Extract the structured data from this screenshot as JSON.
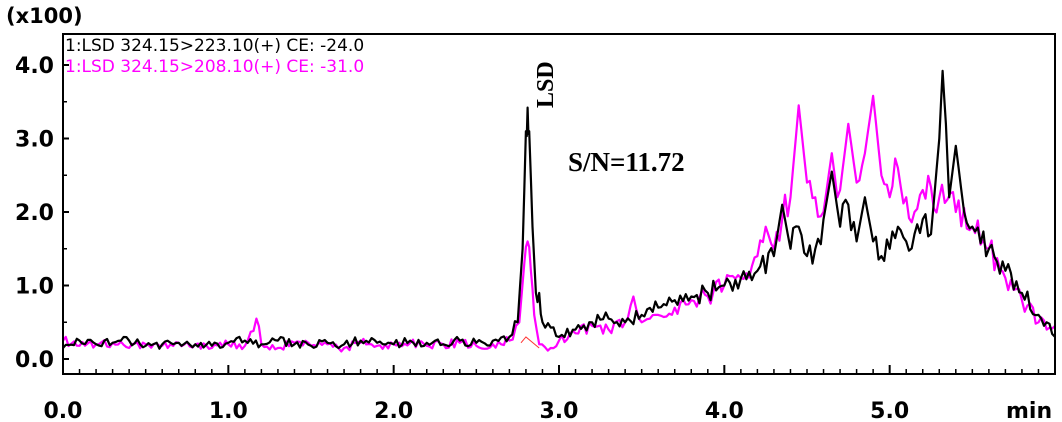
{
  "chart_data": {
    "type": "line",
    "y_multiplier_label": "(x100)",
    "x_unit_label": "min",
    "xlim": [
      0.0,
      6.0
    ],
    "ylim": [
      0.0,
      4.3
    ],
    "x_ticks": [
      "0.0",
      "1.0",
      "2.0",
      "3.0",
      "4.0",
      "5.0"
    ],
    "y_ticks": [
      "0.0",
      "1.0",
      "2.0",
      "3.0",
      "4.0"
    ],
    "grid": false,
    "legend": {
      "placement": "top-left",
      "entries": [
        {
          "label": "1:LSD 324.15>223.10(+) CE: -24.0",
          "color": "#000000"
        },
        {
          "label": "1:LSD 324.15>208.10(+) CE: -31.0",
          "color": "#ff00ff"
        }
      ]
    },
    "annotations": {
      "peak_label": "LSD",
      "signal_to_noise": "S/N=11.72"
    },
    "baseline_color": "#ff3333",
    "series": [
      {
        "name": "1:LSD 324.15>223.10(+) CE: -24.0",
        "color": "#000000",
        "points": [
          [
            0.0,
            0.15
          ],
          [
            0.1,
            0.25
          ],
          [
            0.2,
            0.2
          ],
          [
            0.3,
            0.22
          ],
          [
            0.4,
            0.25
          ],
          [
            0.5,
            0.18
          ],
          [
            0.6,
            0.2
          ],
          [
            0.7,
            0.22
          ],
          [
            0.8,
            0.2
          ],
          [
            0.9,
            0.18
          ],
          [
            1.0,
            0.22
          ],
          [
            1.1,
            0.25
          ],
          [
            1.2,
            0.2
          ],
          [
            1.3,
            0.25
          ],
          [
            1.4,
            0.2
          ],
          [
            1.5,
            0.18
          ],
          [
            1.6,
            0.22
          ],
          [
            1.7,
            0.2
          ],
          [
            1.8,
            0.25
          ],
          [
            1.9,
            0.22
          ],
          [
            2.0,
            0.2
          ],
          [
            2.1,
            0.25
          ],
          [
            2.2,
            0.22
          ],
          [
            2.3,
            0.2
          ],
          [
            2.4,
            0.25
          ],
          [
            2.5,
            0.22
          ],
          [
            2.6,
            0.25
          ],
          [
            2.7,
            0.3
          ],
          [
            2.75,
            0.5
          ],
          [
            2.78,
            1.5
          ],
          [
            2.8,
            3.1
          ],
          [
            2.81,
            3.42
          ],
          [
            2.82,
            3.1
          ],
          [
            2.84,
            1.8
          ],
          [
            2.86,
            0.9
          ],
          [
            2.88,
            0.9
          ],
          [
            2.9,
            0.5
          ],
          [
            3.0,
            0.3
          ],
          [
            3.1,
            0.4
          ],
          [
            3.2,
            0.5
          ],
          [
            3.3,
            0.55
          ],
          [
            3.4,
            0.5
          ],
          [
            3.5,
            0.6
          ],
          [
            3.6,
            0.7
          ],
          [
            3.7,
            0.8
          ],
          [
            3.8,
            0.85
          ],
          [
            3.9,
            0.9
          ],
          [
            4.0,
            1.0
          ],
          [
            4.1,
            1.1
          ],
          [
            4.2,
            1.2
          ],
          [
            4.3,
            1.4
          ],
          [
            4.35,
            2.1
          ],
          [
            4.4,
            1.5
          ],
          [
            4.45,
            1.8
          ],
          [
            4.5,
            1.4
          ],
          [
            4.55,
            1.5
          ],
          [
            4.6,
            1.9
          ],
          [
            4.65,
            2.55
          ],
          [
            4.7,
            1.8
          ],
          [
            4.75,
            2.1
          ],
          [
            4.8,
            1.6
          ],
          [
            4.85,
            2.2
          ],
          [
            4.9,
            1.6
          ],
          [
            4.95,
            1.4
          ],
          [
            5.0,
            1.5
          ],
          [
            5.05,
            1.8
          ],
          [
            5.1,
            1.6
          ],
          [
            5.15,
            1.7
          ],
          [
            5.2,
            1.9
          ],
          [
            5.25,
            1.7
          ],
          [
            5.3,
            3.0
          ],
          [
            5.32,
            3.92
          ],
          [
            5.34,
            3.2
          ],
          [
            5.36,
            2.2
          ],
          [
            5.4,
            2.9
          ],
          [
            5.45,
            2.0
          ],
          [
            5.5,
            1.8
          ],
          [
            5.6,
            1.5
          ],
          [
            5.7,
            1.2
          ],
          [
            5.8,
            0.9
          ],
          [
            5.9,
            0.6
          ],
          [
            5.95,
            0.5
          ],
          [
            6.0,
            0.3
          ]
        ]
      },
      {
        "name": "1:LSD 324.15>208.10(+) CE: -31.0",
        "color": "#ff00ff",
        "points": [
          [
            0.0,
            0.25
          ],
          [
            0.1,
            0.18
          ],
          [
            0.2,
            0.2
          ],
          [
            0.3,
            0.22
          ],
          [
            0.4,
            0.15
          ],
          [
            0.5,
            0.2
          ],
          [
            0.6,
            0.18
          ],
          [
            0.7,
            0.22
          ],
          [
            0.8,
            0.2
          ],
          [
            0.9,
            0.15
          ],
          [
            1.0,
            0.2
          ],
          [
            1.1,
            0.18
          ],
          [
            1.17,
            0.55
          ],
          [
            1.2,
            0.2
          ],
          [
            1.3,
            0.15
          ],
          [
            1.4,
            0.22
          ],
          [
            1.5,
            0.18
          ],
          [
            1.6,
            0.2
          ],
          [
            1.7,
            0.15
          ],
          [
            1.8,
            0.22
          ],
          [
            1.9,
            0.18
          ],
          [
            2.0,
            0.2
          ],
          [
            2.1,
            0.22
          ],
          [
            2.2,
            0.18
          ],
          [
            2.3,
            0.2
          ],
          [
            2.4,
            0.22
          ],
          [
            2.5,
            0.18
          ],
          [
            2.6,
            0.2
          ],
          [
            2.7,
            0.25
          ],
          [
            2.76,
            0.5
          ],
          [
            2.79,
            1.3
          ],
          [
            2.81,
            1.6
          ],
          [
            2.83,
            1.2
          ],
          [
            2.85,
            0.6
          ],
          [
            2.88,
            0.2
          ],
          [
            2.95,
            0.15
          ],
          [
            3.0,
            0.25
          ],
          [
            3.1,
            0.35
          ],
          [
            3.2,
            0.45
          ],
          [
            3.3,
            0.4
          ],
          [
            3.4,
            0.5
          ],
          [
            3.45,
            0.85
          ],
          [
            3.5,
            0.5
          ],
          [
            3.6,
            0.6
          ],
          [
            3.7,
            0.7
          ],
          [
            3.8,
            0.8
          ],
          [
            3.9,
            0.85
          ],
          [
            4.0,
            1.0
          ],
          [
            4.1,
            1.1
          ],
          [
            4.2,
            1.4
          ],
          [
            4.25,
            1.8
          ],
          [
            4.3,
            1.5
          ],
          [
            4.35,
            1.9
          ],
          [
            4.4,
            2.2
          ],
          [
            4.45,
            3.45
          ],
          [
            4.5,
            2.4
          ],
          [
            4.55,
            2.2
          ],
          [
            4.6,
            2.0
          ],
          [
            4.65,
            2.8
          ],
          [
            4.7,
            2.3
          ],
          [
            4.75,
            3.2
          ],
          [
            4.8,
            2.4
          ],
          [
            4.85,
            2.8
          ],
          [
            4.9,
            3.58
          ],
          [
            4.95,
            2.5
          ],
          [
            5.0,
            2.2
          ],
          [
            5.05,
            2.6
          ],
          [
            5.1,
            2.2
          ],
          [
            5.15,
            2.0
          ],
          [
            5.2,
            2.3
          ],
          [
            5.3,
            2.2
          ],
          [
            5.4,
            2.0
          ],
          [
            5.5,
            1.8
          ],
          [
            5.6,
            1.5
          ],
          [
            5.7,
            1.1
          ],
          [
            5.8,
            0.8
          ],
          [
            5.9,
            0.5
          ],
          [
            6.0,
            0.45
          ]
        ]
      }
    ]
  }
}
